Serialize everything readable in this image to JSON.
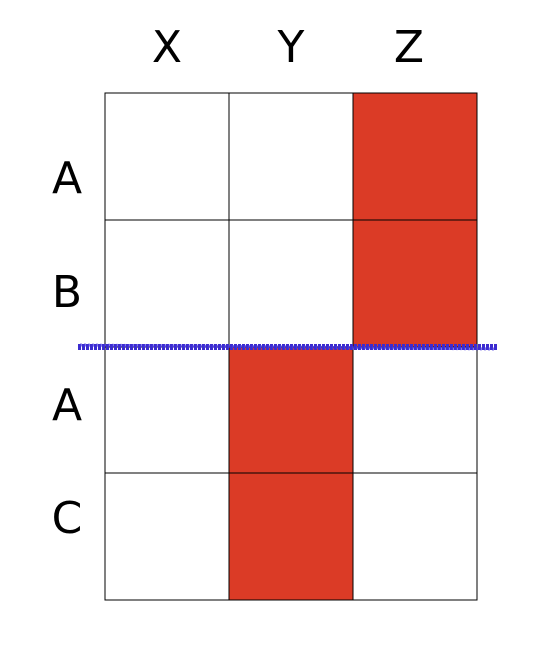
{
  "columns": [
    "X",
    "Y",
    "Z"
  ],
  "rows": [
    "A",
    "B",
    "A",
    "C"
  ]
}
